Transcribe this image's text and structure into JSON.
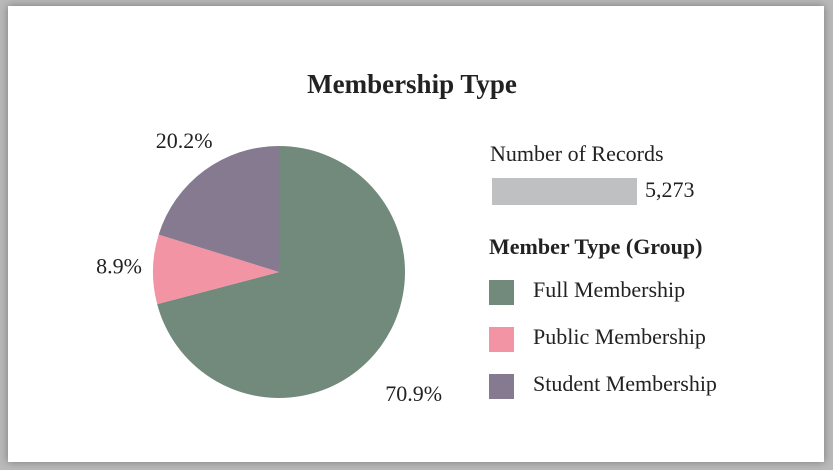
{
  "chart_data": {
    "type": "pie",
    "title": "Membership Type",
    "categories": [
      "Full Membership",
      "Public Membership",
      "Student Membership"
    ],
    "values": [
      70.9,
      8.9,
      20.2
    ],
    "value_labels": [
      "70.9%",
      "8.9%",
      "20.2%"
    ],
    "colors": [
      "#728a7c",
      "#f394a5",
      "#857a90"
    ],
    "legend_title": "Member Type (Group)",
    "size_legend": {
      "title": "Number of Records",
      "value": {
        "value": 5273,
        "label": "5,273"
      },
      "color": "#bfc0c2"
    },
    "legend": "right"
  }
}
